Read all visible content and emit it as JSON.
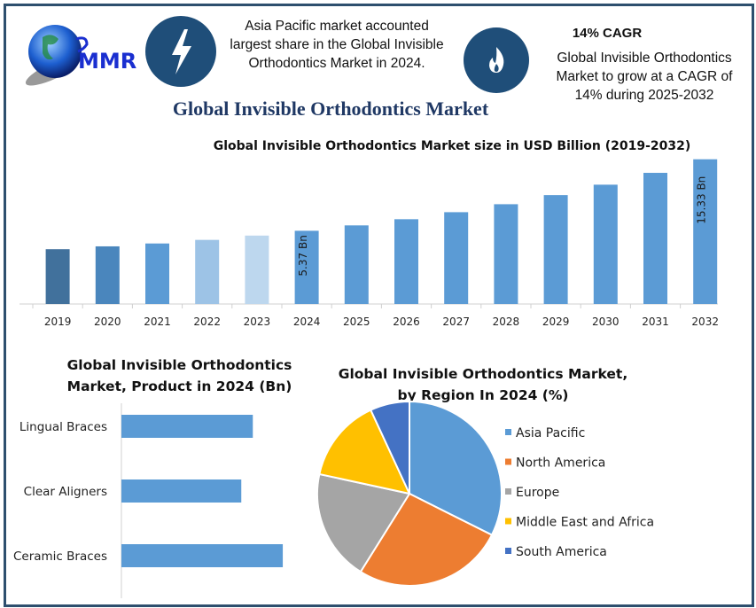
{
  "logo": {
    "text": "MMR"
  },
  "header": {
    "fact1": "Asia Pacific market accounted largest share in the Global Invisible Orthodontics Market in 2024.",
    "fact1_icon": "lightning-icon",
    "fact2_title": "14% CAGR",
    "fact2": "Global Invisible Orthodontics Market to grow at a CAGR of 14% during 2025-2032",
    "fact2_icon": "flame-icon",
    "main_title": "Global Invisible Orthodontics Market"
  },
  "colors": {
    "frame": "#2e4f6e",
    "icon_circle": "#1f4e79",
    "title": "#1f3864",
    "bar": "#5b9bd5"
  },
  "chart_data": [
    {
      "type": "bar",
      "title": "Global Invisible Orthodontics Market size in USD Billion (2019-2032)",
      "categories": [
        "2019",
        "2020",
        "2021",
        "2022",
        "2023",
        "2024",
        "2025",
        "2026",
        "2027",
        "2028",
        "2029",
        "2030",
        "2031",
        "2032"
      ],
      "values": [
        2.8,
        3.2,
        3.6,
        4.1,
        4.7,
        5.37,
        6.12,
        6.98,
        7.96,
        9.07,
        10.34,
        11.79,
        13.44,
        15.33
      ],
      "colors": [
        "#41719c",
        "#4a86bd",
        "#5b9bd5",
        "#9dc3e6",
        "#bdd7ee",
        "#5b9bd5",
        "#5b9bd5",
        "#5b9bd5",
        "#5b9bd5",
        "#5b9bd5",
        "#5b9bd5",
        "#5b9bd5",
        "#5b9bd5",
        "#5b9bd5"
      ],
      "data_labels": {
        "2024": "5.37 Bn",
        "2032": "15.33 Bn"
      },
      "grid": false
    },
    {
      "type": "bar",
      "orientation": "horizontal",
      "title": "Global Invisible Orthodontics Market, Product in 2024 (Bn)",
      "categories": [
        "Lingual Braces",
        "Clear Aligners",
        "Ceramic Braces"
      ],
      "values": [
        1.71,
        1.56,
        2.1
      ],
      "color": "#5b9bd5"
    },
    {
      "type": "pie",
      "title": "Global Invisible Orthodontics Market, by Region In 2024 (%)",
      "categories": [
        "Asia Pacific",
        "North America",
        "Europe",
        "Middle East and Africa",
        "South America"
      ],
      "values": [
        32.4,
        26.5,
        19.5,
        14.7,
        6.9
      ],
      "colors": [
        "#5b9bd5",
        "#ed7d31",
        "#a5a5a5",
        "#ffc000",
        "#4472c4"
      ],
      "legend": "right"
    }
  ]
}
